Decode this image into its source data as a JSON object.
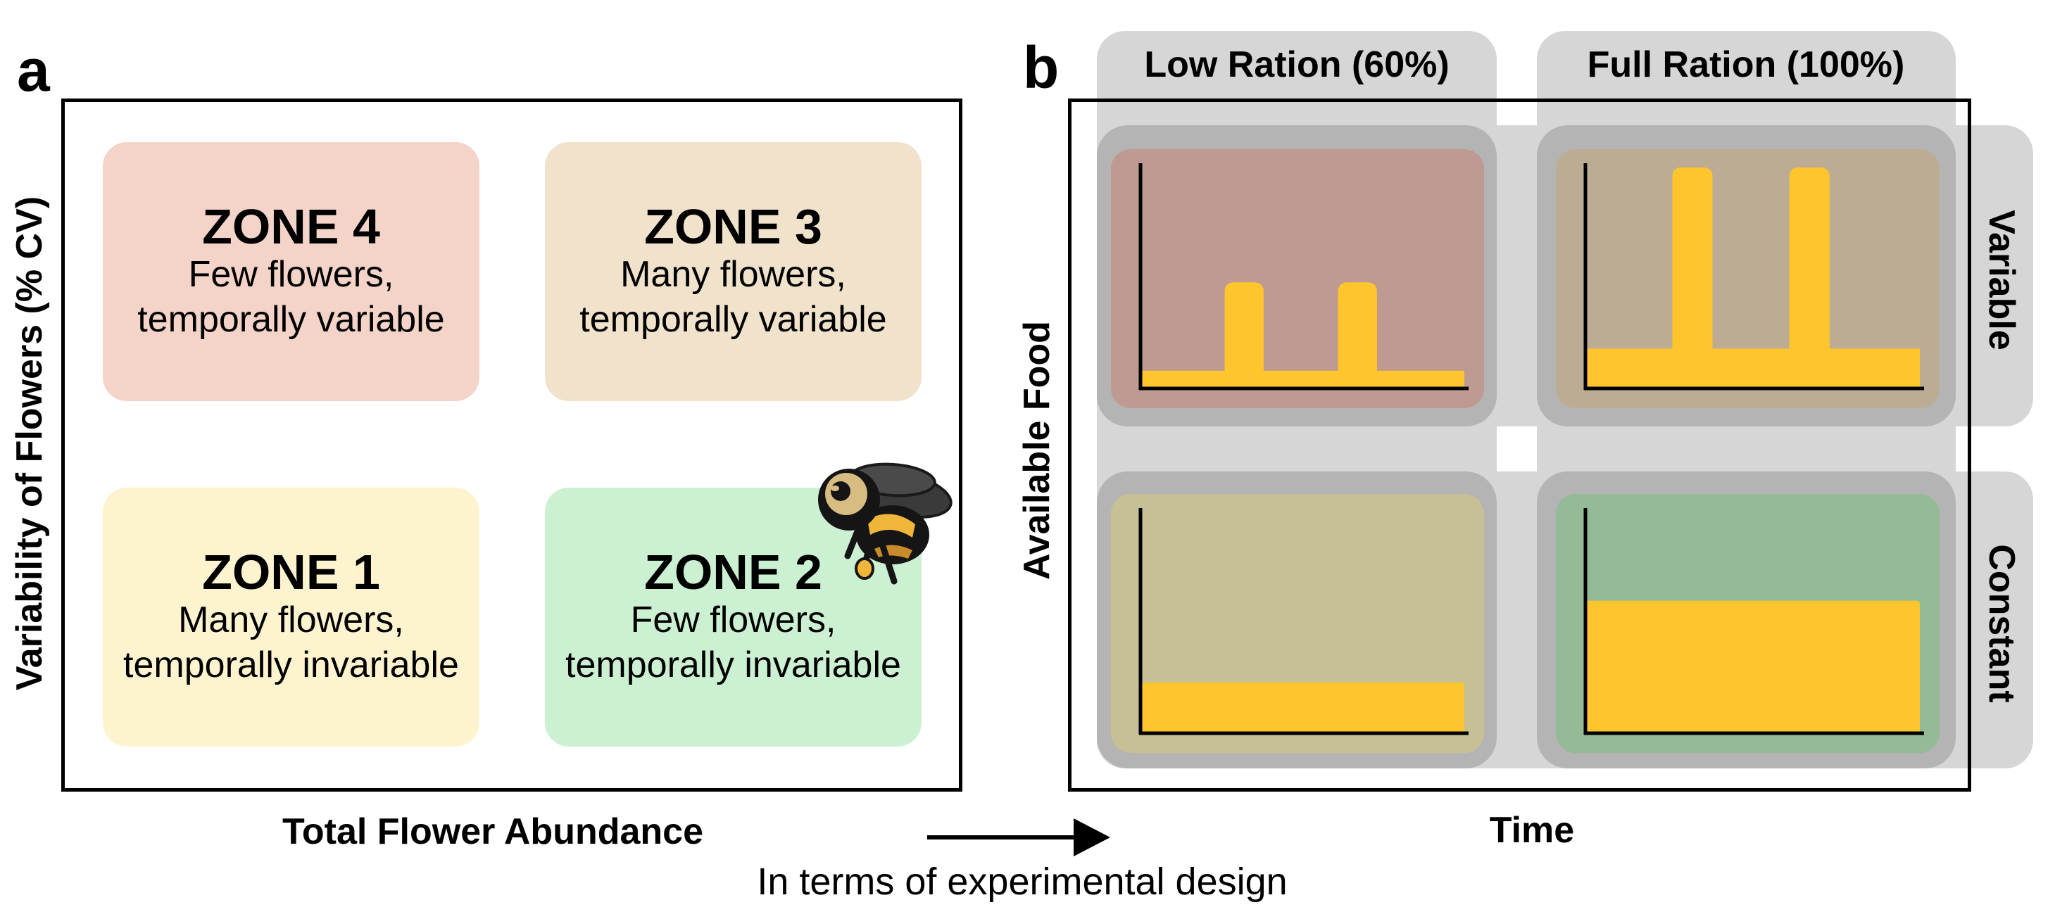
{
  "panel_a": {
    "letter": "a",
    "y_axis_label": "Variability of Flowers (% CV)",
    "x_axis_label": "Total Flower Abundance",
    "zones": [
      {
        "title": "ZONE 4",
        "line1": "Few flowers,",
        "line2": "temporally variable",
        "color": "#f4d3c9"
      },
      {
        "title": "ZONE 3",
        "line1": "Many flowers,",
        "line2": "temporally variable",
        "color": "#f1e2cc"
      },
      {
        "title": "ZONE 1",
        "line1": "Many flowers,",
        "line2": "temporally invariable",
        "color": "#fdf4cf"
      },
      {
        "title": "ZONE 2",
        "line1": "Few flowers,",
        "line2": "temporally invariable",
        "color": "#ccf1d2"
      }
    ],
    "icon": "bumblebee-icon"
  },
  "arrow_note": "In terms of experimental design",
  "panel_b": {
    "letter": "b",
    "columns": [
      "Low Ration (60%)",
      "Full Ration (100%)"
    ],
    "rows": [
      "Variable",
      "Constant"
    ],
    "y_axis_label": "Available Food",
    "x_axis_label": "Time",
    "bar_color": "#fec62c",
    "cells": [
      {
        "column": "Low Ration (60%)",
        "row": "Variable",
        "pattern": "baseline with two pulses",
        "pulse_level": 0.48,
        "baseline_level": 0.08,
        "color": "#be9a92"
      },
      {
        "column": "Full Ration (100%)",
        "row": "Variable",
        "pattern": "baseline with two pulses",
        "pulse_level": 1.0,
        "baseline_level": 0.18,
        "color": "#bcac94"
      },
      {
        "column": "Low Ration (60%)",
        "row": "Constant",
        "pattern": "constant",
        "level": 0.23,
        "color": "#c7bf96"
      },
      {
        "column": "Full Ration (100%)",
        "row": "Constant",
        "pattern": "constant",
        "level": 0.6,
        "color": "#95ba97"
      }
    ]
  }
}
